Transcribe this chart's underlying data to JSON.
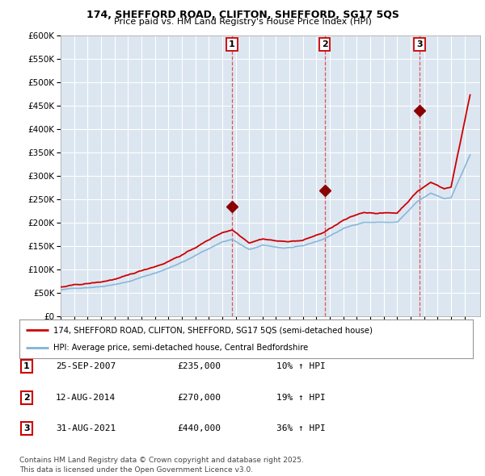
{
  "title_line1": "174, SHEFFORD ROAD, CLIFTON, SHEFFORD, SG17 5QS",
  "title_line2": "Price paid vs. HM Land Registry's House Price Index (HPI)",
  "background_color": "#ffffff",
  "plot_bg_color": "#dce6f1",
  "grid_color": "#ffffff",
  "sale_dates": [
    "2007-09-25",
    "2014-08-12",
    "2021-08-31"
  ],
  "sale_prices": [
    235000,
    270000,
    440000
  ],
  "sale_labels": [
    "1",
    "2",
    "3"
  ],
  "legend_line1": "174, SHEFFORD ROAD, CLIFTON, SHEFFORD, SG17 5QS (semi-detached house)",
  "legend_line2": "HPI: Average price, semi-detached house, Central Bedfordshire",
  "table_rows": [
    [
      "1",
      "25-SEP-2007",
      "£235,000",
      "10% ↑ HPI"
    ],
    [
      "2",
      "12-AUG-2014",
      "£270,000",
      "19% ↑ HPI"
    ],
    [
      "3",
      "31-AUG-2021",
      "£440,000",
      "36% ↑ HPI"
    ]
  ],
  "footer": "Contains HM Land Registry data © Crown copyright and database right 2025.\nThis data is licensed under the Open Government Licence v3.0.",
  "price_line_color": "#cc0000",
  "hpi_line_color": "#7fb2d8",
  "marker_color": "#8b0000",
  "ylim": [
    0,
    600000
  ],
  "yticks": [
    0,
    50000,
    100000,
    150000,
    200000,
    250000,
    300000,
    350000,
    400000,
    450000,
    500000,
    550000,
    600000
  ]
}
